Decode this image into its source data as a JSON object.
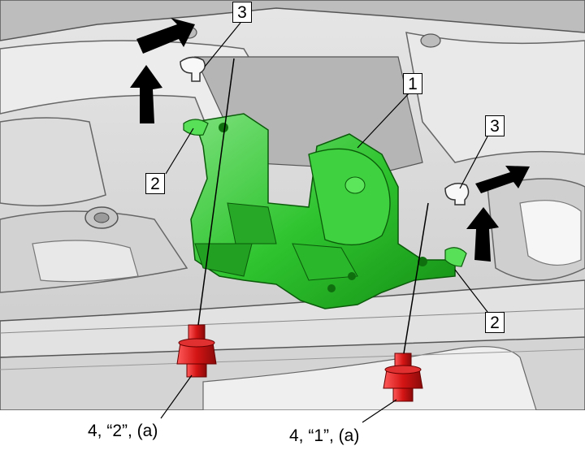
{
  "callouts": {
    "seat_belt_retractor": "1",
    "clip_left": "2",
    "clip_right": "2",
    "hole_left": "3",
    "hole_right": "3"
  },
  "captions": {
    "bolt_left": "4, “2”, (a)",
    "bolt_right": "4, “1”, (a)"
  },
  "colors": {
    "part_highlight": "#2ecc2e",
    "bolt": "#d41414",
    "arrow": "#000000",
    "body_panel": "#d8d8d8"
  },
  "icons": {
    "direction_arrow": "bold-arrow-icon"
  }
}
